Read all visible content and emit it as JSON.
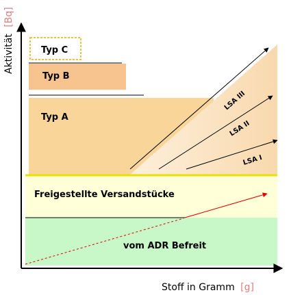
{
  "y_axis": {
    "label": "Aktivität",
    "unit": "[Bq]"
  },
  "x_axis": {
    "label": "Stoff in Gramm",
    "unit": "[g]"
  },
  "boxes": {
    "typ_c": "Typ C",
    "typ_b": "Typ B",
    "typ_a": "Typ A"
  },
  "zones": {
    "freigestellt": "Freigestellte Versandstücke",
    "befreit": "vom ADR Befreit"
  },
  "lsa_labels": [
    "LSA I",
    "LSA II",
    "LSA III"
  ],
  "colors": {
    "typ_a": "#f9d59a",
    "typ_b": "#f7c38f",
    "typ_c_border": "#f0c040",
    "lsa_region": "#fbe6c8",
    "freigestellt": "#ffffd0",
    "befreit": "#c8f7c8",
    "boundary_line": "#e8e000",
    "dashed_line": "#e00000",
    "unit_text": "#e08080"
  }
}
